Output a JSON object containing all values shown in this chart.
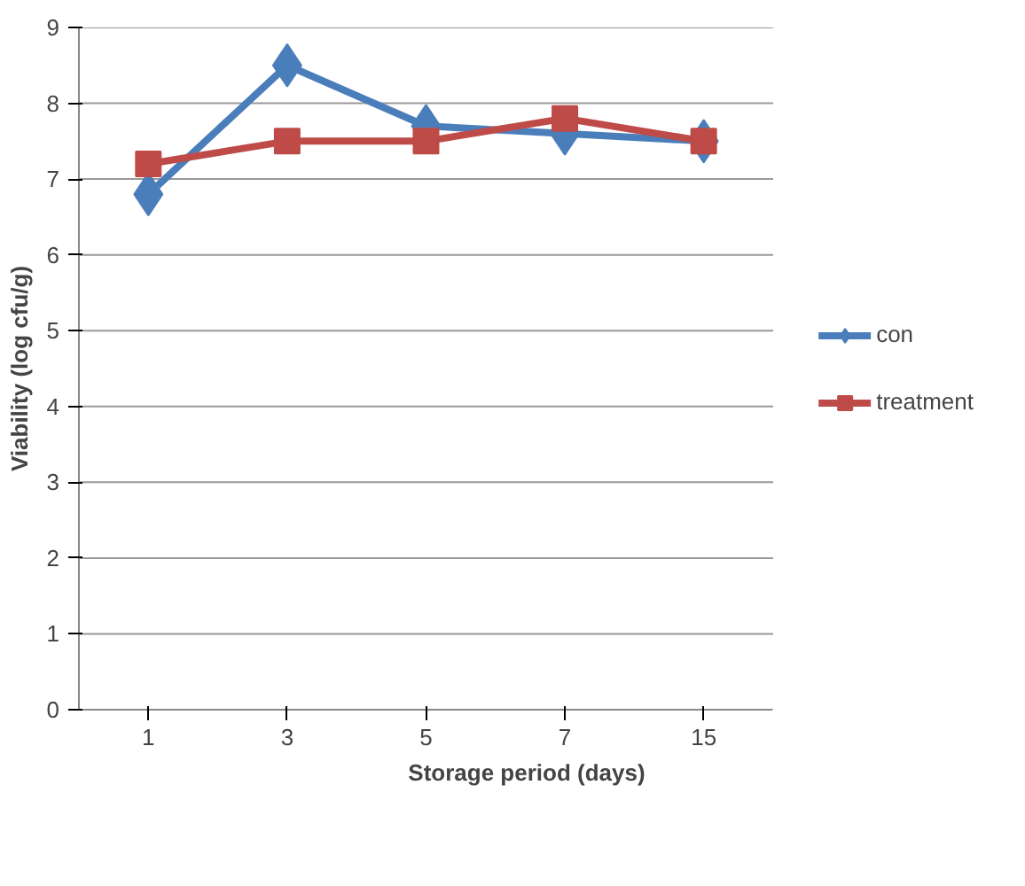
{
  "chart_data": {
    "type": "line",
    "xlabel": "Storage period (days)",
    "ylabel": "Viability (log cfu/g)",
    "categories": [
      "1",
      "3",
      "5",
      "7",
      "15"
    ],
    "series": [
      {
        "name": "con",
        "color": "#4a7ebb",
        "marker": "diamond",
        "values": [
          6.8,
          8.5,
          7.7,
          7.6,
          7.5
        ]
      },
      {
        "name": "treatment",
        "color": "#be4b48",
        "marker": "square",
        "values": [
          7.2,
          7.5,
          7.5,
          7.8,
          7.5
        ]
      }
    ],
    "ylim": [
      0,
      9
    ],
    "yticks": [
      0,
      1,
      2,
      3,
      4,
      5,
      6,
      7,
      8,
      9
    ],
    "grid": "y",
    "legend": "right"
  }
}
